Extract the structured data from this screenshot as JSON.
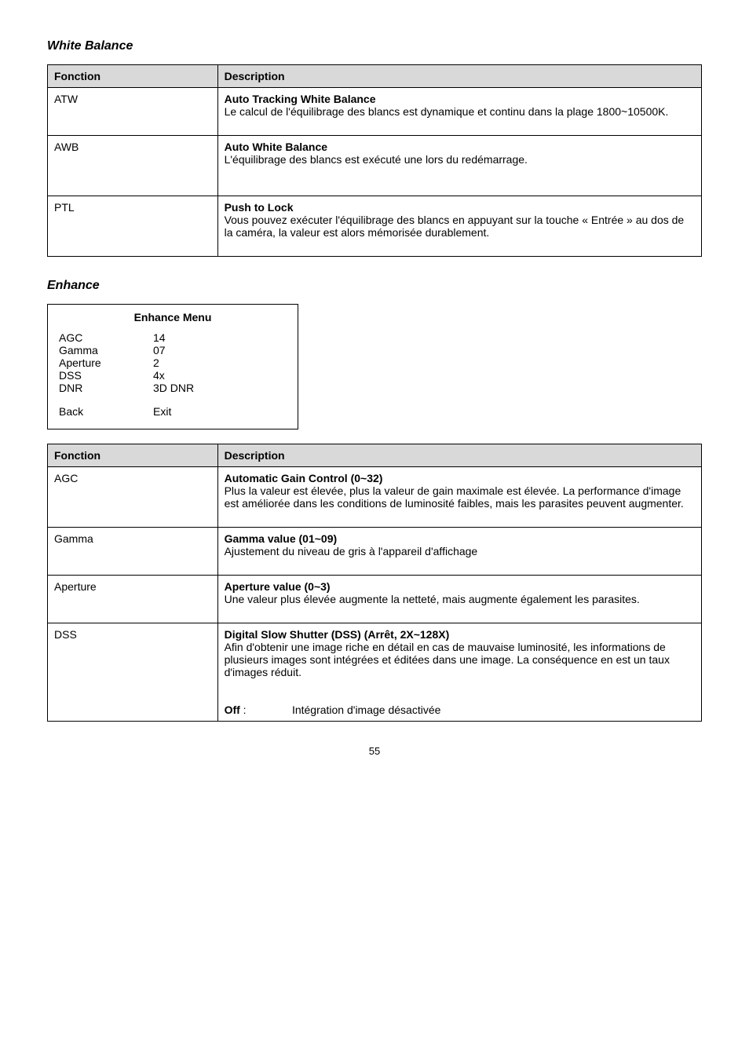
{
  "section1": {
    "title": "White Balance",
    "header_col1": "Fonction",
    "header_col2": "Description",
    "rows": [
      {
        "fonction": "ATW",
        "desc_title": "Auto Tracking White Balance",
        "desc_body": "Le calcul de l'équilibrage des blancs est dynamique et continu dans la plage 1800~10500K."
      },
      {
        "fonction": "AWB",
        "desc_title": "Auto White Balance",
        "desc_body": "L'équilibrage des blancs est exécuté une lors du redémarrage."
      },
      {
        "fonction": "PTL",
        "desc_title": "Push to Lock",
        "desc_body": "Vous pouvez exécuter l'équilibrage des blancs en appuyant sur la touche « Entrée » au dos de la caméra, la valeur est alors mémorisée durablement."
      }
    ]
  },
  "section2": {
    "title": "Enhance",
    "menu": {
      "title": "Enhance Menu",
      "items": [
        {
          "label": "AGC",
          "value": "14"
        },
        {
          "label": "Gamma",
          "value": "07"
        },
        {
          "label": "Aperture",
          "value": "2"
        },
        {
          "label": "DSS",
          "value": "4x"
        },
        {
          "label": "DNR",
          "value": "3D DNR"
        }
      ],
      "footer_left": "Back",
      "footer_right": "Exit"
    },
    "header_col1": "Fonction",
    "header_col2": "Description",
    "rows": [
      {
        "fonction": "AGC",
        "desc_title": "Automatic Gain Control (0~32)",
        "desc_body": "Plus la valeur est élevée, plus la valeur de gain maximale est élevée. La performance d'image est améliorée dans les conditions de luminosité faibles, mais les parasites peuvent augmenter."
      },
      {
        "fonction": "Gamma",
        "desc_title": "Gamma value (01~09)",
        "desc_body": "Ajustement du niveau de gris à l'appareil d'affichage"
      },
      {
        "fonction": "Aperture",
        "desc_title": "Aperture value (0~3)",
        "desc_body": "Une valeur plus élevée augmente la netteté, mais augmente également les parasites."
      },
      {
        "fonction": "DSS",
        "desc_title": "Digital Slow Shutter (DSS) (Arrêt, 2X~128X)",
        "desc_body": "Afin d'obtenir une image riche en détail en cas de mauvaise luminosité, les informations de plusieurs images sont intégrées et éditées dans une image. La conséquence en est un taux d'images réduit.",
        "extra_label": "Off",
        "extra_sep": " : ",
        "extra_value": "Intégration d'image désactivée"
      }
    ]
  },
  "page_number": "55"
}
